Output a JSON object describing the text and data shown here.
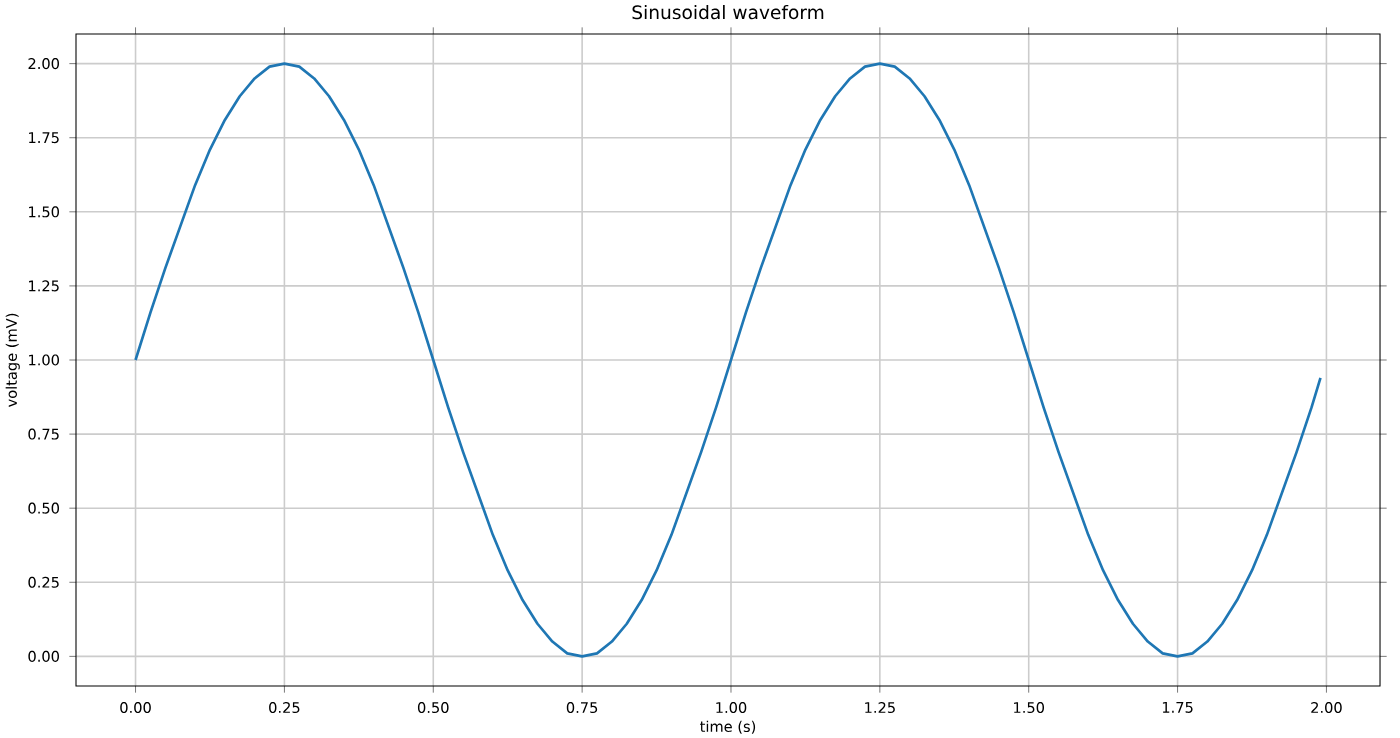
{
  "chart_data": {
    "type": "line",
    "title": "Sinusoidal waveform",
    "xlabel": "time (s)",
    "ylabel": "voltage (mV)",
    "x": [
      0,
      0.025,
      0.05,
      0.075,
      0.1,
      0.125,
      0.15,
      0.175,
      0.2,
      0.225,
      0.25,
      0.275,
      0.3,
      0.325,
      0.35,
      0.375,
      0.4,
      0.425,
      0.45,
      0.475,
      0.5,
      0.525,
      0.55,
      0.575,
      0.6,
      0.625,
      0.65,
      0.675,
      0.7,
      0.725,
      0.75,
      0.775,
      0.8,
      0.825,
      0.85,
      0.875,
      0.9,
      0.925,
      0.95,
      0.975,
      1,
      1.025,
      1.05,
      1.075,
      1.1,
      1.125,
      1.15,
      1.175,
      1.2,
      1.225,
      1.25,
      1.275,
      1.3,
      1.325,
      1.35,
      1.375,
      1.4,
      1.425,
      1.45,
      1.475,
      1.5,
      1.525,
      1.55,
      1.575,
      1.6,
      1.625,
      1.65,
      1.675,
      1.7,
      1.725,
      1.75,
      1.775,
      1.8,
      1.825,
      1.85,
      1.875,
      1.9,
      1.925,
      1.95,
      1.975,
      1.99
    ],
    "series": [
      {
        "color": "#1f77b4",
        "values": [
          1,
          1.16,
          1.31,
          1.45,
          1.59,
          1.71,
          1.81,
          1.89,
          1.95,
          1.99,
          2,
          1.99,
          1.95,
          1.89,
          1.81,
          1.71,
          1.59,
          1.45,
          1.31,
          1.16,
          1,
          0.84,
          0.69,
          0.55,
          0.41,
          0.29,
          0.19,
          0.11,
          0.05,
          0.01,
          0,
          0.01,
          0.05,
          0.11,
          0.19,
          0.29,
          0.41,
          0.55,
          0.69,
          0.84,
          1,
          1.16,
          1.31,
          1.45,
          1.59,
          1.71,
          1.81,
          1.89,
          1.95,
          1.99,
          2,
          1.99,
          1.95,
          1.89,
          1.81,
          1.71,
          1.59,
          1.45,
          1.31,
          1.16,
          1,
          0.84,
          0.69,
          0.55,
          0.41,
          0.29,
          0.19,
          0.11,
          0.05,
          0.01,
          0,
          0.01,
          0.05,
          0.11,
          0.19,
          0.29,
          0.41,
          0.55,
          0.69,
          0.84,
          0.94
        ]
      }
    ],
    "xlim": [
      -0.1,
      2.09
    ],
    "ylim": [
      -0.1,
      2.1
    ],
    "xticks": [
      {
        "value": 0,
        "label": "0.00"
      },
      {
        "value": 0.25,
        "label": "0.25"
      },
      {
        "value": 0.5,
        "label": "0.50"
      },
      {
        "value": 0.75,
        "label": "0.75"
      },
      {
        "value": 1,
        "label": "1.00"
      },
      {
        "value": 1.25,
        "label": "1.25"
      },
      {
        "value": 1.5,
        "label": "1.50"
      },
      {
        "value": 1.75,
        "label": "1.75"
      },
      {
        "value": 2,
        "label": "2.00"
      }
    ],
    "yticks": [
      {
        "value": 0,
        "label": "0.00"
      },
      {
        "value": 0.25,
        "label": "0.25"
      },
      {
        "value": 0.5,
        "label": "0.50"
      },
      {
        "value": 0.75,
        "label": "0.75"
      },
      {
        "value": 1,
        "label": "1.00"
      },
      {
        "value": 1.25,
        "label": "1.25"
      },
      {
        "value": 1.5,
        "label": "1.50"
      },
      {
        "value": 1.75,
        "label": "1.75"
      },
      {
        "value": 2,
        "label": "2.00"
      }
    ],
    "grid": true
  }
}
